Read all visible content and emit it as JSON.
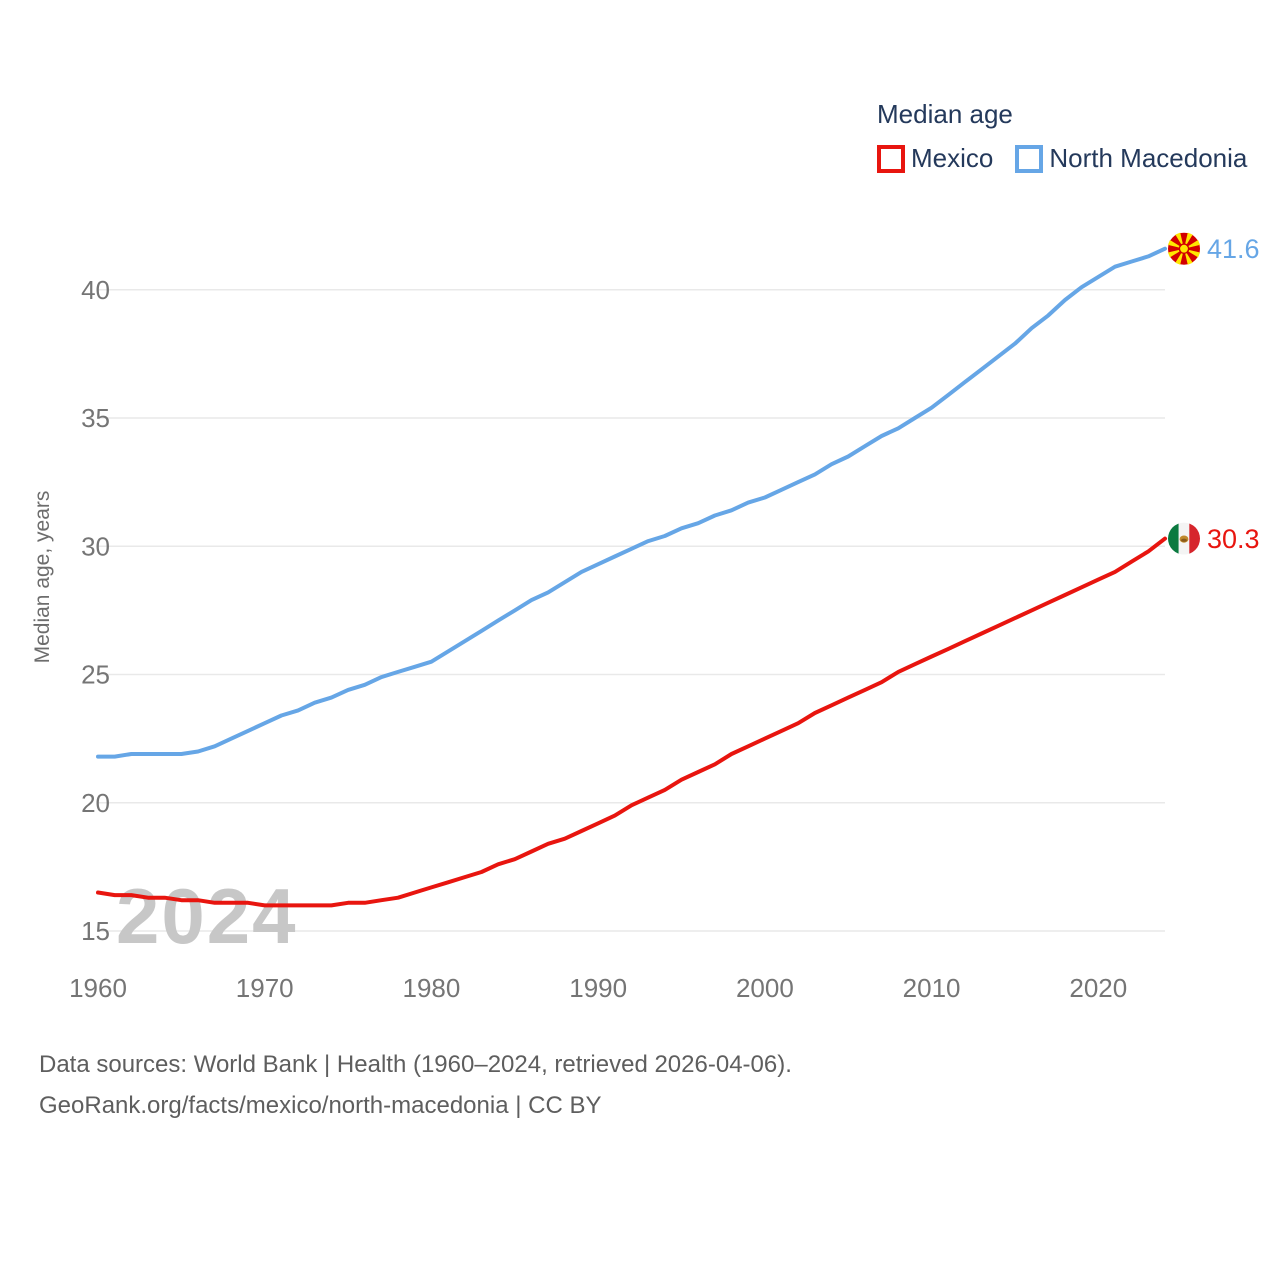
{
  "legend": {
    "title": "Median age",
    "items": [
      {
        "label": "Mexico",
        "color": "#e8150f"
      },
      {
        "label": "North Macedonia",
        "color": "#66a6e6"
      }
    ]
  },
  "y_axis": {
    "label": "Median age, years",
    "ticks": [
      15,
      20,
      25,
      30,
      35,
      40
    ]
  },
  "x_axis": {
    "ticks": [
      1960,
      1970,
      1980,
      1990,
      2000,
      2010,
      2020
    ]
  },
  "watermark": "2024",
  "footer": {
    "line1": "Data sources: World Bank | Health (1960–2024, retrieved 2026-04-06).",
    "line2": "GeoRank.org/facts/mexico/north-macedonia | CC BY"
  },
  "chart_data": {
    "type": "line",
    "title": "Median age",
    "xlabel": "",
    "ylabel": "Median age, years",
    "xlim": [
      1960,
      2024
    ],
    "ylim": [
      15,
      42
    ],
    "grid": "horizontal-only",
    "legend_position": "top-right",
    "x": [
      1960,
      1961,
      1962,
      1963,
      1964,
      1965,
      1966,
      1967,
      1968,
      1969,
      1970,
      1971,
      1972,
      1973,
      1974,
      1975,
      1976,
      1977,
      1978,
      1979,
      1980,
      1981,
      1982,
      1983,
      1984,
      1985,
      1986,
      1987,
      1988,
      1989,
      1990,
      1991,
      1992,
      1993,
      1994,
      1995,
      1996,
      1997,
      1998,
      1999,
      2000,
      2001,
      2002,
      2003,
      2004,
      2005,
      2006,
      2007,
      2008,
      2009,
      2010,
      2011,
      2012,
      2013,
      2014,
      2015,
      2016,
      2017,
      2018,
      2019,
      2020,
      2021,
      2022,
      2023,
      2024
    ],
    "series": [
      {
        "name": "Mexico",
        "color": "#e8150f",
        "flag": "mexico",
        "end_label": "30.3",
        "values": [
          16.5,
          16.4,
          16.4,
          16.3,
          16.3,
          16.2,
          16.2,
          16.1,
          16.1,
          16.1,
          16.0,
          16.0,
          16.0,
          16.0,
          16.0,
          16.1,
          16.1,
          16.2,
          16.3,
          16.5,
          16.7,
          16.9,
          17.1,
          17.3,
          17.6,
          17.8,
          18.1,
          18.4,
          18.6,
          18.9,
          19.2,
          19.5,
          19.9,
          20.2,
          20.5,
          20.9,
          21.2,
          21.5,
          21.9,
          22.2,
          22.5,
          22.8,
          23.1,
          23.5,
          23.8,
          24.1,
          24.4,
          24.7,
          25.1,
          25.4,
          25.7,
          26.0,
          26.3,
          26.6,
          26.9,
          27.2,
          27.5,
          27.8,
          28.1,
          28.4,
          28.7,
          29.0,
          29.4,
          29.8,
          30.3
        ]
      },
      {
        "name": "North Macedonia",
        "color": "#66a6e6",
        "flag": "north-macedonia",
        "end_label": "41.6",
        "values": [
          21.8,
          21.8,
          21.9,
          21.9,
          21.9,
          21.9,
          22.0,
          22.2,
          22.5,
          22.8,
          23.1,
          23.4,
          23.6,
          23.9,
          24.1,
          24.4,
          24.6,
          24.9,
          25.1,
          25.3,
          25.5,
          25.9,
          26.3,
          26.7,
          27.1,
          27.5,
          27.9,
          28.2,
          28.6,
          29.0,
          29.3,
          29.6,
          29.9,
          30.2,
          30.4,
          30.7,
          30.9,
          31.2,
          31.4,
          31.7,
          31.9,
          32.2,
          32.5,
          32.8,
          33.2,
          33.5,
          33.9,
          34.3,
          34.6,
          35.0,
          35.4,
          35.9,
          36.4,
          36.9,
          37.4,
          37.9,
          38.5,
          39.0,
          39.6,
          40.1,
          40.5,
          40.9,
          41.1,
          41.3,
          41.6
        ]
      }
    ]
  },
  "colors": {
    "grid": "#e9e9e9",
    "tick_text": "#757575",
    "legend_text": "#24395b",
    "footer_text": "#5e5e5e",
    "watermark": "#c7c7c7"
  }
}
